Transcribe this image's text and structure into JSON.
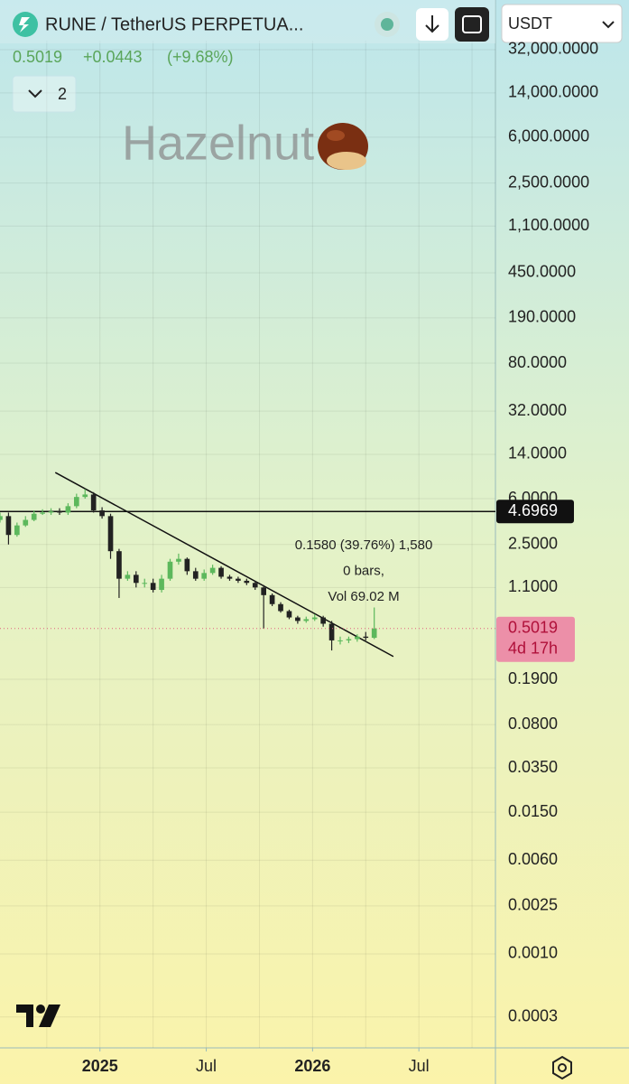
{
  "header": {
    "symbol": "RUNE / TetherUS PERPETUA...",
    "price": "0.5019",
    "change": "+0.0443",
    "change_pct": "(+9.68%)",
    "indicators": "2",
    "currency": "USDT",
    "watermark": "Hazelnut"
  },
  "chart_data": {
    "type": "candlestick",
    "log_scale": true,
    "up_color": "#5cb85c",
    "down_color": "#222222",
    "x": [
      2024.53,
      2024.57,
      2024.61,
      2024.65,
      2024.69,
      2024.73,
      2024.77,
      2024.81,
      2024.85,
      2024.89,
      2024.93,
      2024.97,
      2025.01,
      2025.05,
      2025.09,
      2025.13,
      2025.17,
      2025.21,
      2025.25,
      2025.29,
      2025.33,
      2025.37,
      2025.41,
      2025.45,
      2025.49,
      2025.53,
      2025.57,
      2025.61,
      2025.65,
      2025.69,
      2025.73,
      2025.77,
      2025.81,
      2025.85,
      2025.89,
      2025.93,
      2025.97,
      2026.01,
      2026.05,
      2026.09,
      2026.13,
      2026.17,
      2026.21,
      2026.25,
      2026.29
    ],
    "open": [
      4.0,
      4.3,
      3.0,
      3.6,
      4.0,
      4.5,
      4.6,
      4.7,
      4.6,
      5.2,
      6.2,
      6.5,
      4.8,
      4.3,
      2.2,
      1.3,
      1.4,
      1.2,
      1.2,
      1.05,
      1.3,
      1.8,
      1.9,
      1.5,
      1.3,
      1.45,
      1.6,
      1.35,
      1.3,
      1.25,
      1.2,
      1.1,
      0.95,
      0.8,
      0.7,
      0.62,
      0.58,
      0.6,
      0.62,
      0.55,
      0.4,
      0.4,
      0.41,
      0.43,
      0.42
    ],
    "high": [
      4.6,
      4.6,
      3.8,
      4.3,
      4.8,
      4.9,
      5.0,
      5.0,
      5.5,
      6.6,
      7.2,
      6.8,
      5.1,
      4.5,
      2.3,
      1.5,
      1.5,
      1.3,
      1.3,
      1.4,
      1.9,
      2.1,
      1.95,
      1.6,
      1.55,
      1.7,
      1.65,
      1.4,
      1.35,
      1.3,
      1.25,
      1.15,
      0.98,
      0.83,
      0.72,
      0.64,
      0.63,
      0.66,
      0.64,
      0.58,
      0.43,
      0.43,
      0.45,
      0.47,
      0.75
    ],
    "low": [
      3.8,
      2.5,
      2.9,
      3.5,
      3.9,
      4.4,
      4.4,
      4.4,
      4.4,
      5.0,
      6.0,
      4.6,
      4.1,
      1.9,
      0.9,
      1.25,
      1.1,
      1.1,
      1.0,
      1.0,
      1.25,
      1.7,
      1.4,
      1.25,
      1.25,
      1.4,
      1.3,
      1.25,
      1.2,
      1.15,
      1.05,
      0.5,
      0.77,
      0.68,
      0.6,
      0.55,
      0.56,
      0.58,
      0.52,
      0.33,
      0.37,
      0.38,
      0.39,
      0.4,
      0.41
    ],
    "close": [
      4.3,
      3.0,
      3.6,
      4.0,
      4.5,
      4.6,
      4.7,
      4.6,
      5.2,
      6.2,
      6.5,
      4.8,
      4.3,
      2.2,
      1.3,
      1.4,
      1.2,
      1.2,
      1.05,
      1.3,
      1.8,
      1.9,
      1.5,
      1.3,
      1.45,
      1.6,
      1.35,
      1.3,
      1.25,
      1.2,
      1.1,
      0.95,
      0.8,
      0.7,
      0.62,
      0.58,
      0.6,
      0.62,
      0.55,
      0.4,
      0.4,
      0.41,
      0.43,
      0.42,
      0.5019
    ],
    "countdown": "4d 17h",
    "hline": 4.6969,
    "trendline": {
      "x": [
        2024.79,
        2026.38
      ],
      "y": [
        9.9,
        0.294
      ]
    },
    "measure": [
      "0.1580 (39.76%) 1,580",
      "0 bars,",
      "Vol 69.02 M"
    ],
    "xlim": [
      2024.53,
      2026.86
    ],
    "xticks": [
      2025,
      {
        "value": 2025.5,
        "label": "Jul"
      },
      2026,
      {
        "value": 2026.5,
        "label": "Jul"
      }
    ],
    "x_gridlines": [
      2024.75,
      2025,
      2025.25,
      2025.5,
      2025.75,
      2026,
      2026.25,
      2026.5,
      2026.75
    ],
    "ylim": [
      0.000166,
      38000
    ],
    "yticks": [
      {
        "value": 32000,
        "label": "32,000.0000"
      },
      {
        "value": 14000,
        "label": "14,000.0000"
      },
      {
        "value": 6000,
        "label": "6,000.0000"
      },
      {
        "value": 2500,
        "label": "2,500.0000"
      },
      {
        "value": 1100,
        "label": "1,100.0000"
      },
      {
        "value": 450,
        "label": "450.0000"
      },
      {
        "value": 190,
        "label": "190.0000"
      },
      {
        "value": 80,
        "label": "80.0000"
      },
      {
        "value": 32,
        "label": "32.0000"
      },
      {
        "value": 14,
        "label": "14.0000"
      },
      {
        "value": 6,
        "label": "6.0000"
      },
      {
        "value": 2.5,
        "label": "2.5000"
      },
      {
        "value": 1.1,
        "label": "1.1000"
      },
      {
        "value": 0.19,
        "label": "0.1900"
      },
      {
        "value": 0.08,
        "label": "0.0800"
      },
      {
        "value": 0.035,
        "label": "0.0350"
      },
      {
        "value": 0.015,
        "label": "0.0150"
      },
      {
        "value": 0.006,
        "label": "0.0060"
      },
      {
        "value": 0.0025,
        "label": "0.0025"
      },
      {
        "value": 0.001,
        "label": "0.0010"
      },
      {
        "value": 0.0003,
        "label": "0.0003"
      }
    ],
    "grid": true
  }
}
